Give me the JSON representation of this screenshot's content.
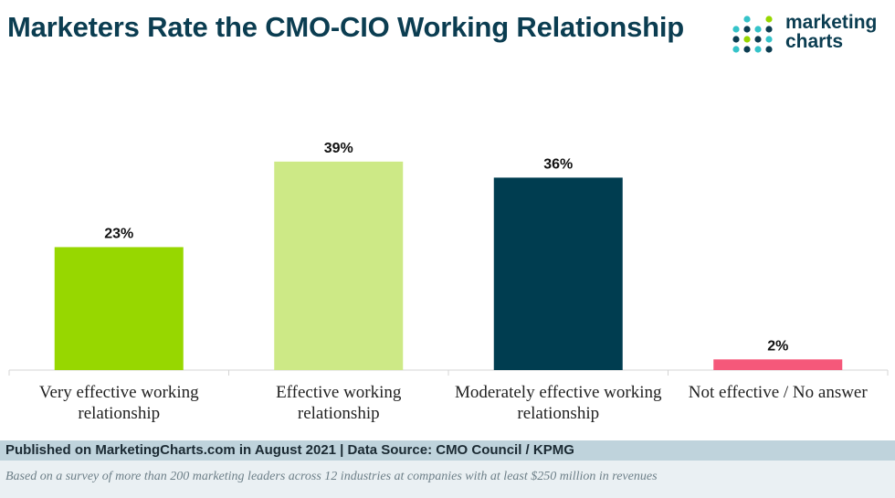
{
  "header": {
    "title": "Marketers Rate the CMO-CIO Working Relationship",
    "logo_line1": "marketing",
    "logo_line2": "charts"
  },
  "chart_data": {
    "type": "bar",
    "title": "Marketers Rate the CMO-CIO Working Relationship",
    "categories": [
      [
        "Very effective working",
        "relationship"
      ],
      [
        "Effective working",
        "relationship"
      ],
      [
        "Moderately effective working",
        "relationship"
      ],
      [
        "Not effective / No answer"
      ]
    ],
    "values": [
      23,
      39,
      36,
      2
    ],
    "value_labels": [
      "23%",
      "39%",
      "36%",
      "2%"
    ],
    "colors": [
      "#97d700",
      "#cde986",
      "#003d50",
      "#f5587a"
    ],
    "ylim": [
      0,
      45
    ],
    "grid": false,
    "legend": "none"
  },
  "footer": {
    "source": "Published on MarketingCharts.com in August 2021 | Data Source: CMO Council / KPMG",
    "note": "Based on a survey of more than 200 marketing leaders across 12 industries at companies with at least $250 million in revenues"
  },
  "colors": {
    "title": "#0b3d51",
    "source_bar": "#bfd3dc",
    "note_bar": "#eaf0f3",
    "logo_dots": [
      "#0b3d51",
      "#35c3c9",
      "#97d700"
    ]
  }
}
